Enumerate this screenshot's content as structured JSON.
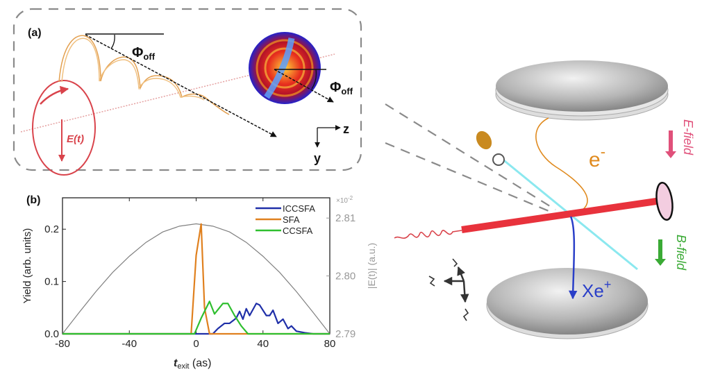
{
  "panel_a": {
    "label": "(a)",
    "phi_main": "Φ",
    "phi_sub": "off",
    "field_label": "E(t)",
    "axis_z": "z",
    "axis_y": "y"
  },
  "setup": {
    "electron_label": "e",
    "electron_sup": "-",
    "ion_label": "Xe",
    "ion_sup": "+",
    "e_field_label": "E-field",
    "b_field_label": "B-field",
    "colors": {
      "laser": "#e8323c",
      "electron": "#e08a1e",
      "ion": "#2a3fc8",
      "e_field": "#e0507a",
      "b_field": "#3aaa35",
      "plate": "#9a9a9a"
    }
  },
  "chart_data": {
    "type": "line",
    "panel_label": "(b)",
    "xlabel_main": "t",
    "xlabel_sub": "exit",
    "xlabel_unit": " (as)",
    "ylabel": "Yield (arb. units)",
    "y2label": "|E(t)| (a.u.)",
    "y2_multiplier": "×10",
    "y2_multiplier_exp": "-2",
    "xlim": [
      -80,
      80
    ],
    "ylim": [
      0,
      0.26
    ],
    "y2lim": [
      2.79,
      2.8135
    ],
    "xticks": [
      "-80",
      "-40",
      "0",
      "40",
      "80"
    ],
    "xtick_values": [
      -80,
      -40,
      0,
      40,
      80
    ],
    "yticks": [
      "0.0",
      "0.1",
      "0.2"
    ],
    "ytick_values": [
      0,
      0.1,
      0.2
    ],
    "y2ticks": [
      "2.79",
      "2.80",
      "2.81"
    ],
    "y2tick_values": [
      2.79,
      2.8,
      2.81
    ],
    "legend_position": "top-right",
    "series": [
      {
        "name": "ICCSFA",
        "color": "#1f2fa8",
        "points": [
          [
            -80,
            0
          ],
          [
            10,
            0
          ],
          [
            13,
            0.01
          ],
          [
            17,
            0.02
          ],
          [
            20,
            0.02
          ],
          [
            24,
            0.03
          ],
          [
            26,
            0.043
          ],
          [
            28,
            0.028
          ],
          [
            30,
            0.048
          ],
          [
            32,
            0.035
          ],
          [
            36,
            0.058
          ],
          [
            38,
            0.055
          ],
          [
            42,
            0.035
          ],
          [
            44,
            0.035
          ],
          [
            46,
            0.045
          ],
          [
            49,
            0.02
          ],
          [
            52,
            0.028
          ],
          [
            55,
            0.01
          ],
          [
            57,
            0.015
          ],
          [
            60,
            0.005
          ],
          [
            65,
            0.002
          ],
          [
            70,
            0
          ],
          [
            80,
            0
          ]
        ]
      },
      {
        "name": "SFA",
        "color": "#e0801e",
        "points": [
          [
            -80,
            0
          ],
          [
            -3,
            0
          ],
          [
            0,
            0.15
          ],
          [
            3,
            0.21
          ],
          [
            5,
            0.05
          ],
          [
            8,
            0
          ],
          [
            80,
            0
          ]
        ]
      },
      {
        "name": "CCSFA",
        "color": "#2fbf2f",
        "points": [
          [
            -80,
            0
          ],
          [
            -1,
            0
          ],
          [
            3,
            0.03
          ],
          [
            8,
            0.062
          ],
          [
            11,
            0.038
          ],
          [
            16,
            0.058
          ],
          [
            19,
            0.058
          ],
          [
            23,
            0.035
          ],
          [
            27,
            0.015
          ],
          [
            31,
            0
          ],
          [
            80,
            0
          ]
        ]
      }
    ],
    "field_curve": {
      "name": "|E(t)|",
      "axis": "right",
      "color": "#808080",
      "points": [
        [
          -80,
          2.79
        ],
        [
          -70,
          2.7937
        ],
        [
          -60,
          2.7973
        ],
        [
          -50,
          2.8006
        ],
        [
          -40,
          2.8034
        ],
        [
          -30,
          2.8058
        ],
        [
          -20,
          2.8076
        ],
        [
          -10,
          2.8086
        ],
        [
          0,
          2.809
        ],
        [
          10,
          2.8086
        ],
        [
          20,
          2.8076
        ],
        [
          30,
          2.8058
        ],
        [
          40,
          2.8034
        ],
        [
          50,
          2.8006
        ],
        [
          60,
          2.7973
        ],
        [
          70,
          2.7937
        ],
        [
          80,
          2.79
        ]
      ]
    }
  }
}
